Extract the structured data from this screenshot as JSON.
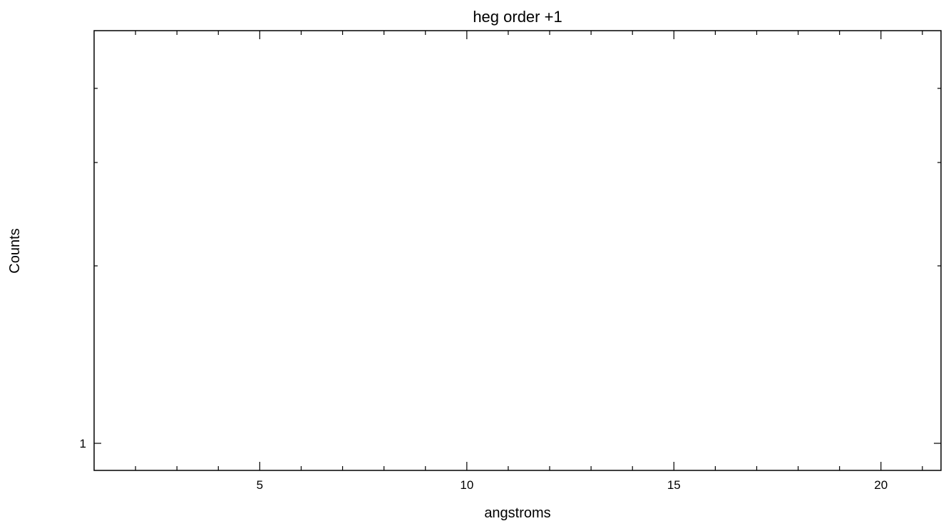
{
  "chart_data": {
    "type": "line",
    "title": "heg order +1",
    "xlabel": "angstroms",
    "ylabel": "Counts",
    "xlim": [
      1.0,
      21.45
    ],
    "x_major_ticks": [
      5,
      10,
      15,
      20
    ],
    "x_tick_labels": [
      "5",
      "10",
      "15",
      "20"
    ],
    "x_minor_step": 1,
    "y_scale": "log",
    "y_tick_labels": [
      "1"
    ],
    "grid": false,
    "legend": "none",
    "series": []
  }
}
